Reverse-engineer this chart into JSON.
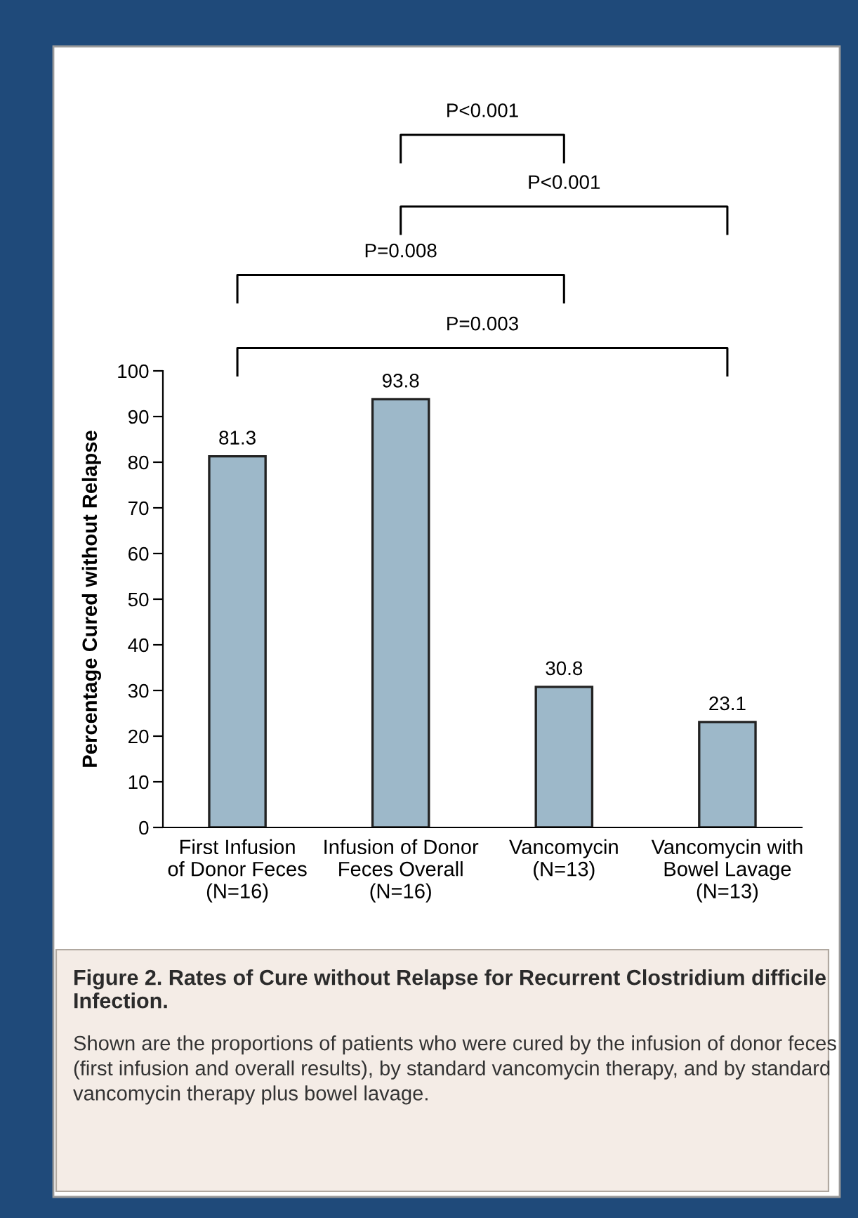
{
  "chart_data": {
    "type": "bar",
    "title": "Figure 2. Rates of Cure without Relapse for Recurrent Clostridium difficile Infection.",
    "subtitle": "Shown are the proportions of patients who were cured by the infusion of donor feces (first infusion and overall results), by standard vancomycin therapy, and by standard vancomycin therapy plus bowel lavage.",
    "ylabel": "Percentage Cured without Relapse",
    "categories": [
      "First Infusion\nof Donor Feces\n(N=16)",
      "Infusion of Donor\nFeces Overall\n(N=16)",
      "Vancomycin\n(N=13)",
      "Vancomycin with\nBowel Lavage\n(N=13)"
    ],
    "values": [
      81.3,
      93.8,
      30.8,
      23.1
    ],
    "color": "#9db8c9",
    "ylim": [
      0,
      100
    ],
    "yticks": [
      0,
      10,
      20,
      30,
      40,
      50,
      60,
      70,
      80,
      90,
      100
    ],
    "data_labels": true,
    "grid": false,
    "annotations": [
      "P<0.001",
      "P<0.001",
      "P=0.008",
      "P=0.003"
    ]
  }
}
